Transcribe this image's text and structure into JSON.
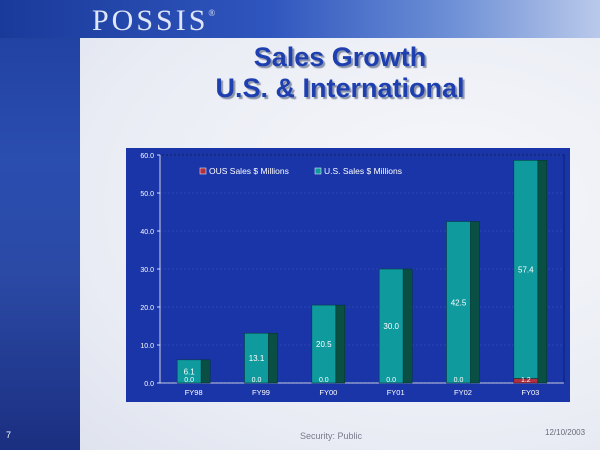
{
  "header": {
    "logo_text": "POSSIS",
    "logo_mark": "®",
    "title_line1": "Sales Growth",
    "title_line2": "U.S. & International"
  },
  "footer": {
    "page_number": "7",
    "security": "Security: Public",
    "date": "12/10/2003"
  },
  "colors": {
    "accent": "#1e3fb0",
    "plot_bg": "#1a35a8",
    "us_series": "#0f9a9e",
    "ous_series": "#b03040"
  },
  "chart_data": {
    "type": "bar",
    "stacked": true,
    "categories": [
      "FY98",
      "FY99",
      "FY00",
      "FY01",
      "FY02",
      "FY03"
    ],
    "series": [
      {
        "name": "OUS Sales $ Millions",
        "values": [
          0.0,
          0.0,
          0.0,
          0.0,
          0.0,
          1.2
        ],
        "labels": [
          "0.0",
          "0.0",
          "0.0",
          "0.0",
          "0.0",
          "1.2"
        ],
        "color": "#b03040"
      },
      {
        "name": "U.S. Sales $ Millions",
        "values": [
          6.1,
          13.1,
          20.5,
          30.0,
          42.5,
          57.4
        ],
        "labels": [
          "6.1",
          "13.1",
          "20.5",
          "30.0",
          "42.5",
          "57.4"
        ],
        "color": "#0f9a9e"
      }
    ],
    "yticks": [
      "0.0",
      "10.0",
      "20.0",
      "30.0",
      "40.0",
      "50.0",
      "60.0"
    ],
    "ylim": [
      0,
      60
    ],
    "legend_position": "top",
    "title": "",
    "xlabel": "",
    "ylabel": ""
  }
}
